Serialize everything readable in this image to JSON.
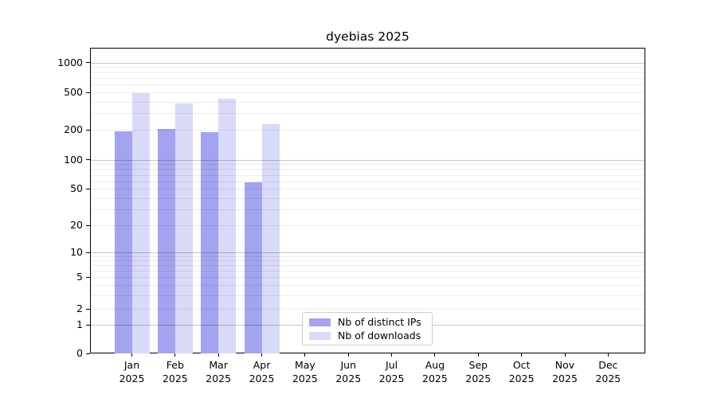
{
  "chart_data": {
    "type": "bar",
    "title": "dyebias 2025",
    "categories": [
      "Jan",
      "Feb",
      "Mar",
      "Apr",
      "May",
      "Jun",
      "Jul",
      "Aug",
      "Sep",
      "Oct",
      "Nov",
      "Dec"
    ],
    "year_label": "2025",
    "series": [
      {
        "name": "Nb of distinct IPs",
        "color": "#a3a3f0",
        "values": [
          195,
          205,
          190,
          58,
          null,
          null,
          null,
          null,
          null,
          null,
          null,
          null
        ]
      },
      {
        "name": "Nb of downloads",
        "color": "#d9d9f8",
        "values": [
          490,
          380,
          430,
          232,
          null,
          null,
          null,
          null,
          null,
          null,
          null,
          null
        ]
      }
    ],
    "xlabel": "",
    "ylabel": "",
    "yscale": "symlog",
    "y_ticks": [
      0,
      1,
      2,
      5,
      10,
      20,
      50,
      100,
      200,
      500,
      1000
    ],
    "ylim": [
      0,
      1400
    ],
    "grid": "horizontal, minor and major log gridlines",
    "legend_position": "lower center inside plot"
  },
  "colors": {
    "grid_major": "#c8c8c8",
    "grid_minor": "#ededed",
    "axis": "#000000",
    "background": "#ffffff"
  }
}
